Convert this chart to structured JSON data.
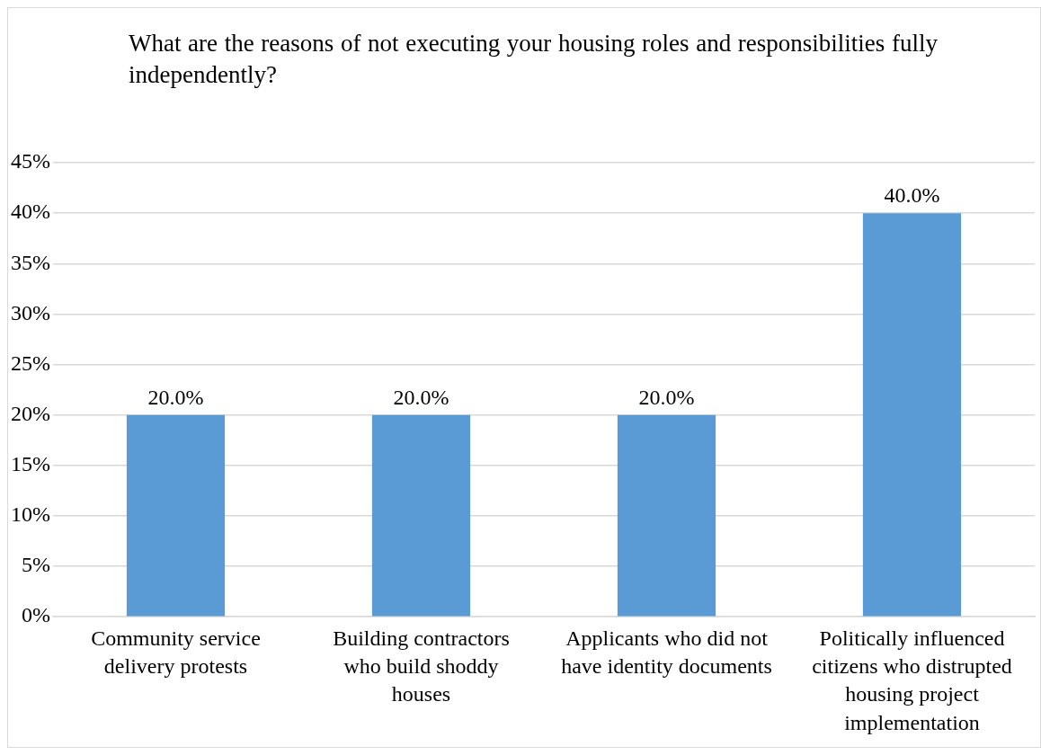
{
  "chart_data": {
    "type": "bar",
    "title": "What are the reasons of not executing your housing roles and responsibilities fully independently?",
    "categories": [
      "Community service delivery protests",
      "Building contractors who build shoddy houses",
      "Applicants who did not have identity documents",
      "Politically influenced citizens who distrupted housing project implementation"
    ],
    "values": [
      20,
      20,
      20,
      40
    ],
    "value_labels": [
      "20.0%",
      "20.0%",
      "20.0%",
      "40.0%"
    ],
    "color": "#5b9bd5",
    "ylim": [
      0,
      45
    ],
    "yticks": [
      {
        "value": 0,
        "label": "0%"
      },
      {
        "value": 5,
        "label": "5%"
      },
      {
        "value": 10,
        "label": "10%"
      },
      {
        "value": 15,
        "label": "15%"
      },
      {
        "value": 20,
        "label": "20%"
      },
      {
        "value": 25,
        "label": "25%"
      },
      {
        "value": 30,
        "label": "30%"
      },
      {
        "value": 35,
        "label": "35%"
      },
      {
        "value": 40,
        "label": "40%"
      },
      {
        "value": 45,
        "label": "45%"
      }
    ],
    "grid": "y",
    "legend": false
  }
}
